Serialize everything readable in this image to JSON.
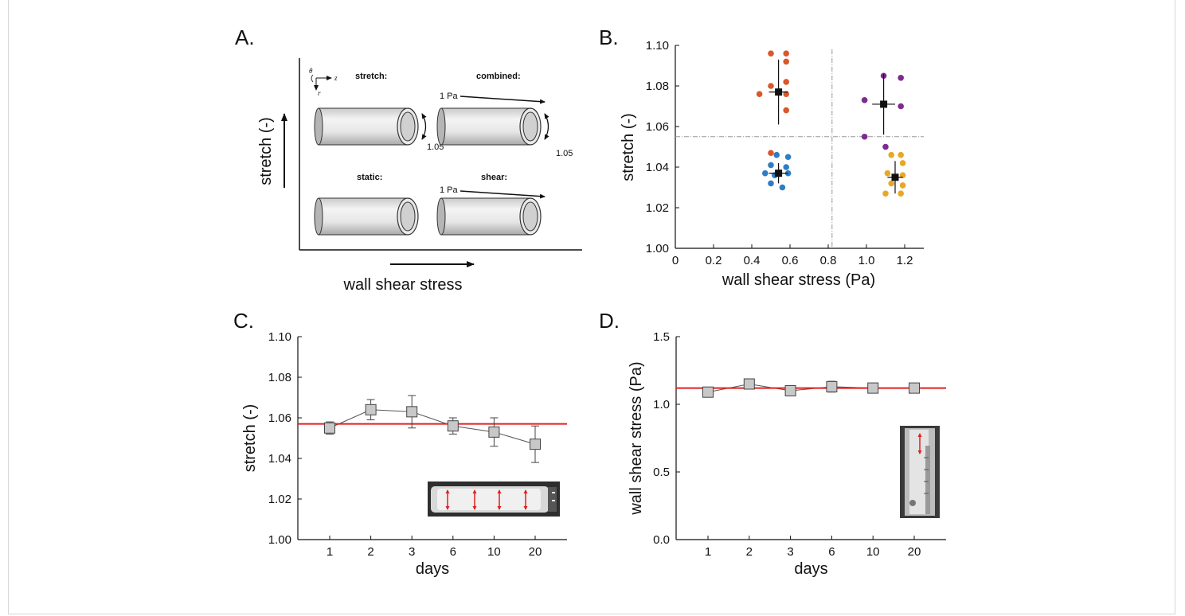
{
  "panels": {
    "A": {
      "letter": "A.",
      "xlabel": "wall shear stress",
      "ylabel": "stretch (-)",
      "coords": {
        "theta": "θ",
        "z": "z",
        "r": "r"
      },
      "conditions": [
        {
          "label": "stretch:",
          "pa": "",
          "strain": "1.05"
        },
        {
          "label": "combined:",
          "pa": "1 Pa",
          "strain": "1.05"
        },
        {
          "label": "static:",
          "pa": "",
          "strain": ""
        },
        {
          "label": "shear:",
          "pa": "1 Pa",
          "strain": ""
        }
      ]
    },
    "B": {
      "letter": "B."
    },
    "C": {
      "letter": "C."
    },
    "D": {
      "letter": "D."
    }
  },
  "colors": {
    "stretch": "#d9572b",
    "static": "#2f7dc4",
    "combined": "#7d2b8e",
    "shear": "#e8a824",
    "target_line": "#e02020",
    "marker_fill": "#c8c8c8"
  },
  "chart_data": [
    {
      "panel": "B",
      "type": "scatter",
      "xlabel": "wall shear stress (Pa)",
      "ylabel": "stretch (-)",
      "xlim": [
        0,
        1.3
      ],
      "ylim": [
        1.0,
        1.1
      ],
      "xticks": [
        "0",
        "0.2",
        "0.4",
        "0.6",
        "0.8",
        "1.0",
        "1.2"
      ],
      "yticks": [
        "1.00",
        "1.02",
        "1.04",
        "1.06",
        "1.08",
        "1.10"
      ],
      "threshold_x": 0.82,
      "threshold_y": 1.055,
      "series": [
        {
          "group": "stretch",
          "points": [
            [
              0.5,
              1.096
            ],
            [
              0.58,
              1.096
            ],
            [
              0.58,
              1.092
            ],
            [
              0.5,
              1.08
            ],
            [
              0.58,
              1.082
            ],
            [
              0.58,
              1.076
            ],
            [
              0.44,
              1.076
            ],
            [
              0.58,
              1.068
            ],
            [
              0.5,
              1.047
            ]
          ],
          "mean": [
            0.54,
            1.077
          ],
          "xerr": 0.05,
          "yerr": 0.016
        },
        {
          "group": "static",
          "points": [
            [
              0.53,
              1.046
            ],
            [
              0.59,
              1.045
            ],
            [
              0.5,
              1.041
            ],
            [
              0.58,
              1.04
            ],
            [
              0.47,
              1.037
            ],
            [
              0.52,
              1.036
            ],
            [
              0.59,
              1.037
            ],
            [
              0.5,
              1.032
            ],
            [
              0.56,
              1.03
            ]
          ],
          "mean": [
            0.54,
            1.037
          ],
          "xerr": 0.05,
          "yerr": 0.005
        },
        {
          "group": "combined",
          "points": [
            [
              1.09,
              1.085
            ],
            [
              1.18,
              1.084
            ],
            [
              0.99,
              1.073
            ],
            [
              1.18,
              1.07
            ],
            [
              0.99,
              1.055
            ],
            [
              1.1,
              1.05
            ]
          ],
          "mean": [
            1.09,
            1.071
          ],
          "xerr": 0.06,
          "yerr": 0.015
        },
        {
          "group": "shear",
          "points": [
            [
              1.13,
              1.046
            ],
            [
              1.18,
              1.046
            ],
            [
              1.19,
              1.042
            ],
            [
              1.11,
              1.037
            ],
            [
              1.19,
              1.036
            ],
            [
              1.13,
              1.032
            ],
            [
              1.19,
              1.031
            ],
            [
              1.1,
              1.027
            ],
            [
              1.18,
              1.027
            ]
          ],
          "mean": [
            1.15,
            1.035
          ],
          "xerr": 0.04,
          "yerr": 0.008
        }
      ]
    },
    {
      "panel": "C",
      "type": "line",
      "xlabel": "days",
      "ylabel": "stretch (-)",
      "categories": [
        "1",
        "2",
        "3",
        "6",
        "10",
        "20"
      ],
      "values": [
        1.055,
        1.064,
        1.063,
        1.056,
        1.053,
        1.047
      ],
      "errors": [
        0.003,
        0.005,
        0.008,
        0.004,
        0.007,
        0.009
      ],
      "target": 1.057,
      "ylim": [
        1.0,
        1.1
      ],
      "yticks": [
        "1.00",
        "1.02",
        "1.04",
        "1.06",
        "1.08",
        "1.10"
      ]
    },
    {
      "panel": "D",
      "type": "line",
      "xlabel": "days",
      "ylabel": "wall shear stress (Pa)",
      "categories": [
        "1",
        "2",
        "3",
        "6",
        "10",
        "20"
      ],
      "values": [
        1.09,
        1.15,
        1.1,
        1.13,
        1.12,
        1.12
      ],
      "errors": [
        0.02,
        0.02,
        0.02,
        0.04,
        0.02,
        0.03
      ],
      "target": 1.12,
      "ylim": [
        0.0,
        1.5
      ],
      "yticks": [
        "0.0",
        "0.5",
        "1.0",
        "1.5"
      ]
    }
  ]
}
